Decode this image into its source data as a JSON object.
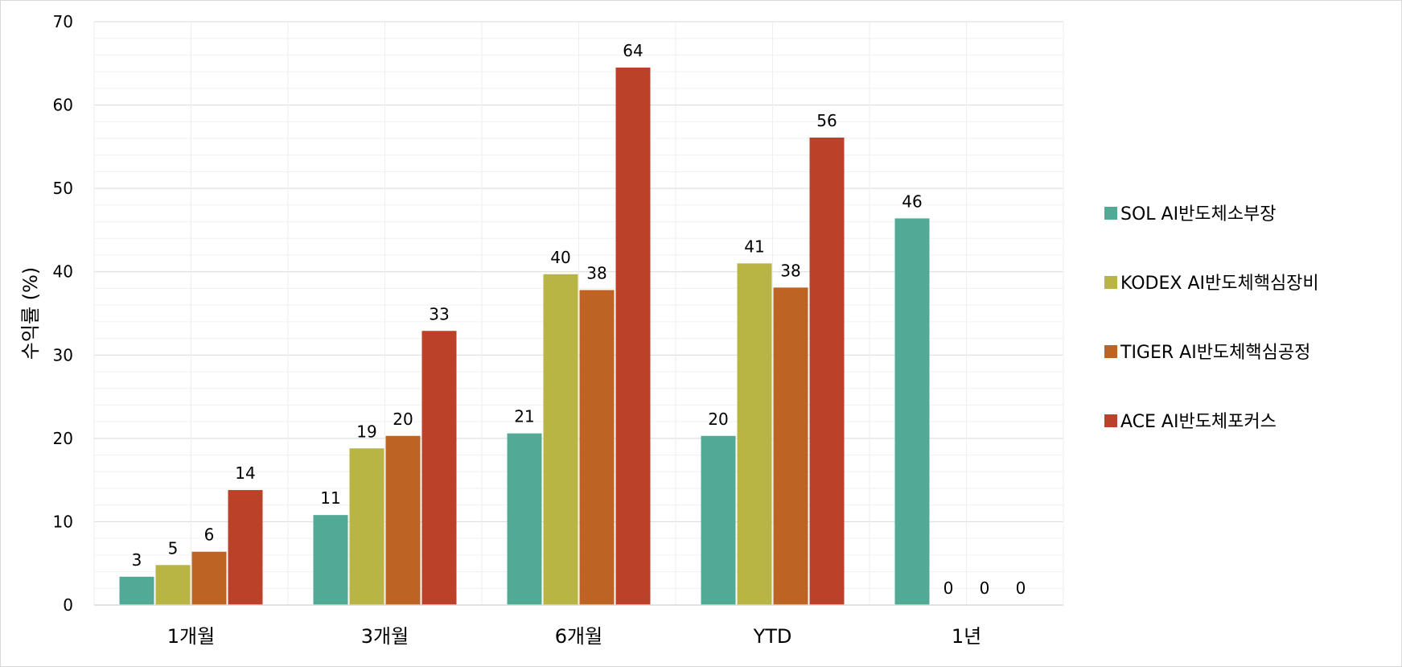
{
  "chart_data": {
    "type": "bar",
    "title": "",
    "xlabel": "",
    "ylabel": "수익률 (%)",
    "ylim": [
      0,
      70
    ],
    "yticks": [
      0,
      10,
      20,
      30,
      40,
      50,
      60,
      70
    ],
    "minor_grid_step": 2,
    "grid": true,
    "legend_position": "right",
    "categories": [
      "1개월",
      "3개월",
      "6개월",
      "YTD",
      "1년"
    ],
    "series": [
      {
        "name": "SOL AI반도체소부장",
        "color": "#52a996",
        "values": [
          3.4,
          10.8,
          20.6,
          20.3,
          46.4
        ],
        "labels": [
          "3",
          "11",
          "21",
          "20",
          "46"
        ]
      },
      {
        "name": "KODEX AI반도체핵심장비",
        "color": "#b8b545",
        "values": [
          4.8,
          18.8,
          39.7,
          41.0,
          0
        ],
        "labels": [
          "5",
          "19",
          "40",
          "41",
          "0"
        ]
      },
      {
        "name": "TIGER AI반도체핵심공정",
        "color": "#bd6424",
        "values": [
          6.4,
          20.3,
          37.8,
          38.1,
          0
        ],
        "labels": [
          "6",
          "20",
          "38",
          "38",
          "0"
        ]
      },
      {
        "name": "ACE AI반도체포커스",
        "color": "#bb4128",
        "values": [
          13.8,
          32.9,
          64.5,
          56.1,
          0
        ],
        "labels": [
          "14",
          "33",
          "64",
          "56",
          "0"
        ]
      }
    ]
  }
}
